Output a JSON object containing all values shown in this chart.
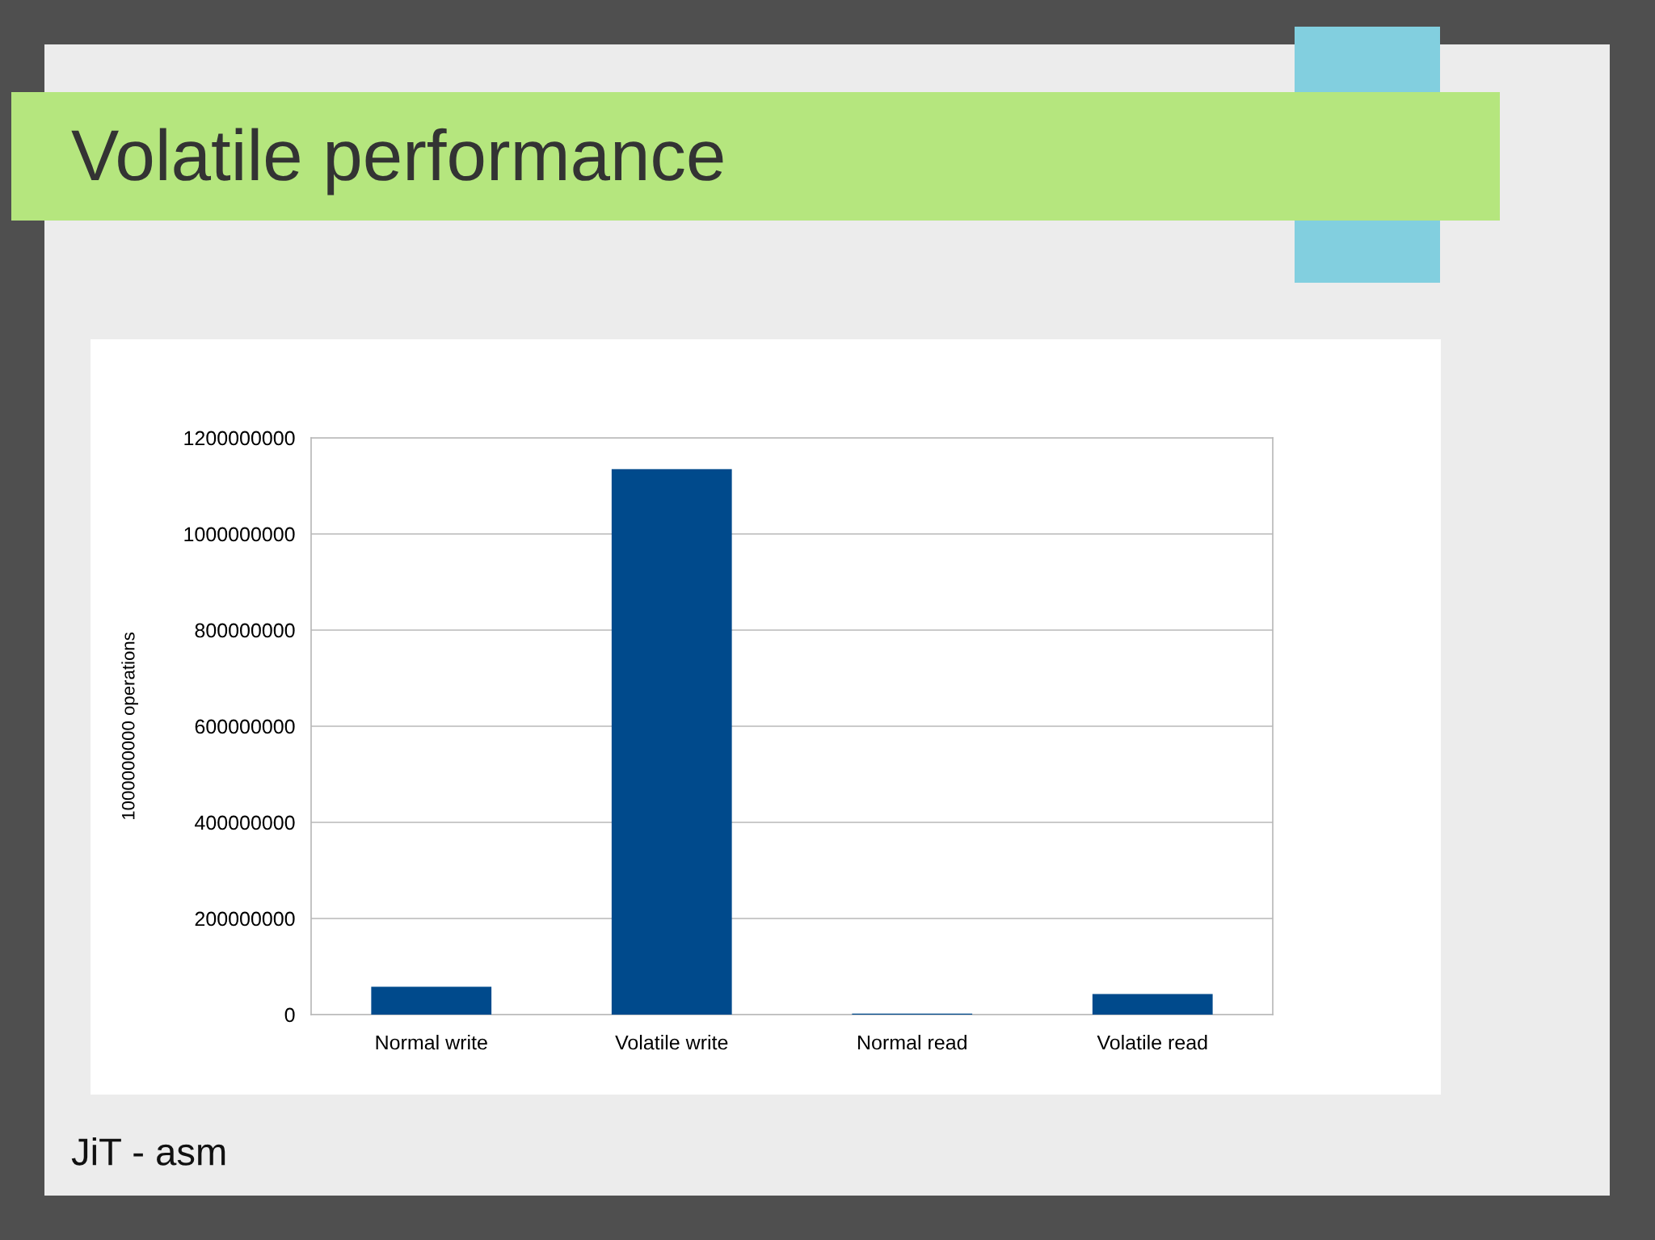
{
  "chart_data": {
    "type": "bar",
    "title": "Volatile performance",
    "ylabel": "1000000000 operations",
    "categories": [
      "Normal write",
      "Volatile write",
      "Normal read",
      "Volatile read"
    ],
    "values": [
      58000000,
      1135000000,
      2000000,
      43000000
    ],
    "color": "#004a8c",
    "ylim": [
      0,
      1200000000
    ],
    "yticks": [
      0,
      200000000,
      400000000,
      600000000,
      800000000,
      1000000000,
      1200000000
    ],
    "grid": "y",
    "annotations": [
      "JiT - asm"
    ]
  }
}
